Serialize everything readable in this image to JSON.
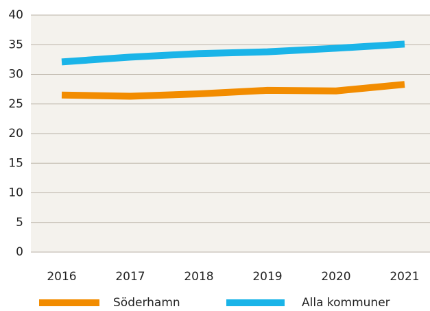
{
  "chart_data": {
    "type": "line",
    "categories": [
      "2016",
      "2017",
      "2018",
      "2019",
      "2020",
      "2021"
    ],
    "series": [
      {
        "name": "Söderhamn",
        "color": "#f28c00",
        "values": [
          26.5,
          26.3,
          26.7,
          27.3,
          27.2,
          28.3
        ]
      },
      {
        "name": "Alla kommuner",
        "color": "#1ab4e8",
        "values": [
          32.1,
          32.9,
          33.5,
          33.8,
          34.4,
          35.1
        ]
      }
    ],
    "ylim": [
      0,
      40
    ],
    "yticks": [
      0,
      5,
      10,
      15,
      20,
      25,
      30,
      35,
      40
    ],
    "grid": true
  }
}
